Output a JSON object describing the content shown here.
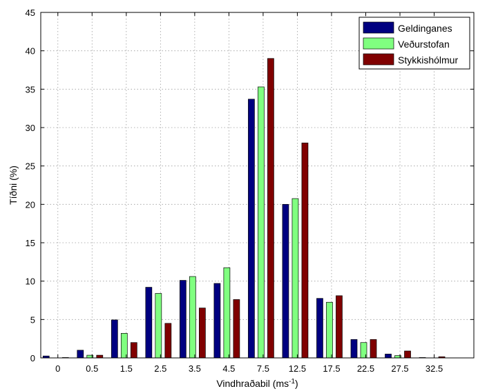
{
  "chart_data": {
    "type": "bar",
    "xlabel": "Vindhraðabil (ms",
    "xlabel_sup": "-1",
    "xlabel_end": ")",
    "ylabel": "Tíðni (%)",
    "ylim": [
      0,
      45
    ],
    "yticks": [
      "0",
      "5",
      "10",
      "15",
      "20",
      "25",
      "30",
      "35",
      "40",
      "45"
    ],
    "grid": true,
    "legend_position": "top-right",
    "categories": [
      "0",
      "0.5",
      "1.5",
      "2.5",
      "3.5",
      "4.5",
      "7.5",
      "12.5",
      "17.5",
      "22.5",
      "27.5",
      "32.5"
    ],
    "series": [
      {
        "name": "Geldinganes",
        "color": "#000080",
        "values": [
          0.25,
          1.0,
          4.95,
          9.2,
          10.1,
          9.7,
          33.7,
          20.0,
          7.75,
          2.4,
          0.5,
          0.05
        ]
      },
      {
        "name": "Veðurstofan",
        "color": "#80ff80",
        "values": [
          0.0,
          0.35,
          3.2,
          8.4,
          10.6,
          11.75,
          35.3,
          20.75,
          7.25,
          2.0,
          0.3,
          0.0
        ]
      },
      {
        "name": "Stykkishólmur",
        "color": "#800000",
        "values": [
          0.05,
          0.35,
          2.0,
          4.5,
          6.5,
          7.6,
          39.0,
          28.0,
          8.1,
          2.4,
          0.9,
          0.15
        ]
      }
    ]
  }
}
